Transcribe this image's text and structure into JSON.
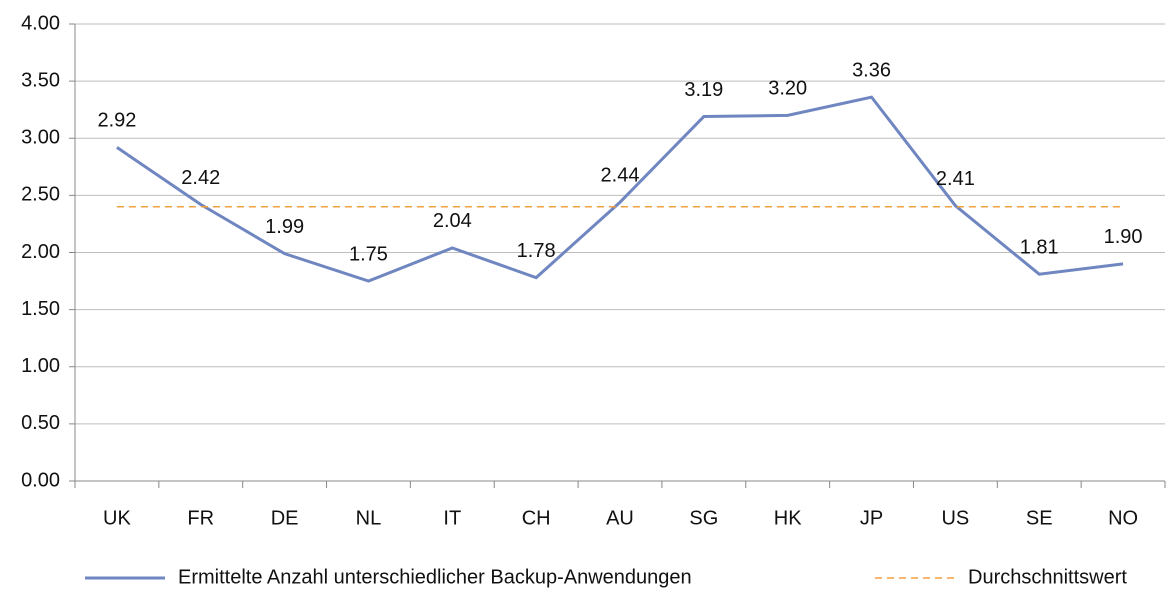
{
  "chart_data": {
    "type": "line",
    "categories": [
      "UK",
      "FR",
      "DE",
      "NL",
      "IT",
      "CH",
      "AU",
      "SG",
      "HK",
      "JP",
      "US",
      "SE",
      "NO"
    ],
    "series": [
      {
        "name": "Ermittelte Anzahl unterschiedlicher Backup-Anwendungen",
        "color": "#6f86c1",
        "values": [
          2.92,
          2.42,
          1.99,
          1.75,
          2.04,
          1.78,
          2.44,
          3.19,
          3.2,
          3.36,
          2.41,
          1.81,
          1.9
        ],
        "value_labels": [
          "2.92",
          "2.42",
          "1.99",
          "1.75",
          "2.04",
          "1.78",
          "2.44",
          "3.19",
          "3.20",
          "3.36",
          "2.41",
          "1.81",
          "1.90"
        ]
      },
      {
        "name": "Durchschnittswert",
        "color": "#f0a040",
        "dashed": true,
        "values": [
          2.4,
          2.4,
          2.4,
          2.4,
          2.4,
          2.4,
          2.4,
          2.4,
          2.4,
          2.4,
          2.4,
          2.4,
          2.4
        ]
      }
    ],
    "ylim": [
      0,
      4
    ],
    "yticks": [
      {
        "value": 0,
        "label": "0.00"
      },
      {
        "value": 0.5,
        "label": "0.50"
      },
      {
        "value": 1,
        "label": "1.00"
      },
      {
        "value": 1.5,
        "label": "1.50"
      },
      {
        "value": 2,
        "label": "2.00"
      },
      {
        "value": 2.5,
        "label": "2.50"
      },
      {
        "value": 3,
        "label": "3.00"
      },
      {
        "value": 3.5,
        "label": "3.50"
      },
      {
        "value": 4,
        "label": "4.00"
      }
    ],
    "grid": true,
    "legend": "bottom"
  }
}
